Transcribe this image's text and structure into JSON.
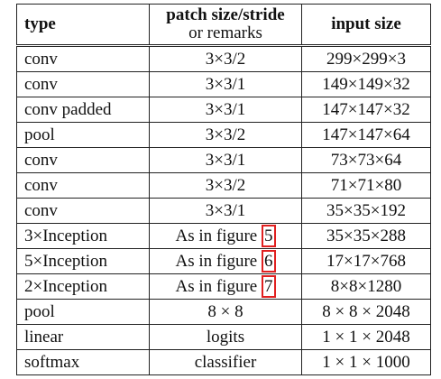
{
  "table": {
    "header": {
      "type": "type",
      "patch": "patch size/stride",
      "patch_note": "or remarks",
      "input": "input size"
    },
    "rows": [
      [
        "conv",
        "3×3/2",
        "299×299×3"
      ],
      [
        "conv",
        "3×3/1",
        "149×149×32"
      ],
      [
        "conv padded",
        "3×3/1",
        "147×147×32"
      ],
      [
        "pool",
        "3×3/2",
        "147×147×64"
      ],
      [
        "conv",
        "3×3/1",
        "73×73×64"
      ],
      [
        "conv",
        "3×3/2",
        "71×71×80"
      ],
      [
        "conv",
        "3×3/1",
        "35×35×192"
      ],
      [
        "3×Inception",
        {
          "text": "As in figure",
          "figure": "5"
        },
        "35×35×288"
      ],
      [
        "5×Inception",
        {
          "text": "As in figure",
          "figure": "6"
        },
        "17×17×768"
      ],
      [
        "2×Inception",
        {
          "text": "As in figure",
          "figure": "7"
        },
        "8×8×1280"
      ],
      [
        "pool",
        "8 × 8",
        "8 × 8 × 2048"
      ],
      [
        "linear",
        "logits",
        "1 × 1 × 2048"
      ],
      [
        "softmax",
        "classifier",
        "1 × 1 × 1000"
      ]
    ]
  }
}
